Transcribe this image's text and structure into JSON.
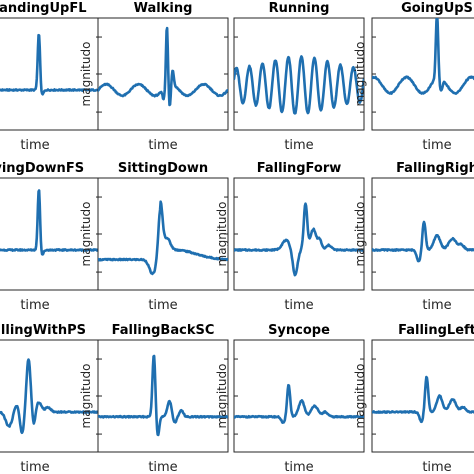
{
  "figure": {
    "line_color": "#1f6fb0",
    "axis_color": "#262626"
  },
  "chart_data": [
    {
      "type": "line",
      "title": "StandingUpFL",
      "xlabel": "time",
      "ylabel": "",
      "xlim": [
        0,
        100
      ],
      "ylim": [
        -2.5,
        4.5
      ],
      "series": [
        {
          "shape": "spike",
          "values": []
        }
      ],
      "features": {
        "baseline": 0,
        "spike_at": 53,
        "spike_height": 3.6,
        "after_dip": -0.3,
        "noise": 0.05
      }
    },
    {
      "type": "line",
      "title": "Walking",
      "xlabel": "time",
      "ylabel": "magnitudo",
      "xlim": [
        0,
        100
      ],
      "ylim": [
        -2.5,
        4.5
      ],
      "series": [
        {
          "shape": "walk"
        }
      ],
      "features": {
        "baseline": 0,
        "spike_at": 53,
        "spike_height": 3.8,
        "wave_amp": 0.35,
        "wave_cycles": 4
      }
    },
    {
      "type": "line",
      "title": "Running",
      "xlabel": "time",
      "ylabel": "",
      "xlim": [
        0,
        100
      ],
      "ylim": [
        -2.5,
        4.5
      ],
      "series": [
        {
          "shape": "run"
        }
      ],
      "features": {
        "baseline": 0.3,
        "wave_amp": 1.8,
        "wave_cycles": 10,
        "envelope_peak": 50
      }
    },
    {
      "type": "line",
      "title": "GoingUpS",
      "xlabel": "time",
      "ylabel": "magnitudo",
      "xlim": [
        0,
        100
      ],
      "ylim": [
        -2.5,
        4.5
      ],
      "series": [
        {
          "shape": "walk_spike"
        }
      ],
      "features": {
        "baseline": 0.3,
        "spike_at": 50,
        "spike_height": 4.0,
        "wave_amp": 0.5,
        "wave_cycles": 4
      }
    },
    {
      "type": "line",
      "title": "LyingDownFS",
      "xlabel": "time",
      "ylabel": "",
      "xlim": [
        0,
        100
      ],
      "ylim": [
        -2.5,
        4.5
      ],
      "series": [
        {
          "shape": "spike"
        }
      ],
      "features": {
        "baseline": 0,
        "spike_at": 53,
        "spike_height": 3.9,
        "after_dip": -0.2,
        "noise": 0.05
      }
    },
    {
      "type": "line",
      "title": "SittingDown",
      "xlabel": "time",
      "ylabel": "magnitudo",
      "xlim": [
        0,
        100
      ],
      "ylim": [
        -2.5,
        4.5
      ],
      "series": [
        {
          "shape": "sit"
        }
      ],
      "features": {
        "baseline": -0.6,
        "spike_at": 48,
        "spike_height": 3.1,
        "noise": 0.05
      }
    },
    {
      "type": "line",
      "title": "FallingForw",
      "xlabel": "time",
      "ylabel": "magnitudo",
      "xlim": [
        0,
        100
      ],
      "ylim": [
        -2.5,
        4.5
      ],
      "series": [
        {
          "shape": "fall"
        }
      ],
      "features": {
        "baseline": 0,
        "spike_at": 55,
        "spike_height": 2.9,
        "pre_bump_at": 40,
        "dip_at": 47
      }
    },
    {
      "type": "line",
      "title": "FallingRigh",
      "xlabel": "time",
      "ylabel": "magnitudo",
      "xlim": [
        0,
        100
      ],
      "ylim": [
        -2.5,
        4.5
      ],
      "series": [
        {
          "shape": "fall_small"
        }
      ],
      "features": {
        "baseline": 0,
        "spike_at": 40,
        "spike_height": 1.8,
        "bumps_at": [
          50,
          62
        ]
      }
    },
    {
      "type": "line",
      "title": "FallingWithPS",
      "xlabel": "time",
      "ylabel": "",
      "xlim": [
        0,
        100
      ],
      "ylim": [
        -2.5,
        4.5
      ],
      "series": [
        {
          "shape": "fall_ps"
        }
      ],
      "features": {
        "baseline": 0,
        "spike_at": 45,
        "spike_height": 3.3,
        "dip_at": 30
      }
    },
    {
      "type": "line",
      "title": "FallingBackSC",
      "xlabel": "time",
      "ylabel": "magnitudo",
      "xlim": [
        0,
        100
      ],
      "ylim": [
        -2.5,
        4.5
      ],
      "series": [
        {
          "shape": "fall_back"
        }
      ],
      "features": {
        "baseline": -0.3,
        "spike_at": 43,
        "spike_height": 3.9,
        "bump_at": 55
      }
    },
    {
      "type": "line",
      "title": "Syncope",
      "xlabel": "time",
      "ylabel": "magnitudo",
      "xlim": [
        0,
        100
      ],
      "ylim": [
        -2.5,
        4.5
      ],
      "series": [
        {
          "shape": "syncope"
        }
      ],
      "features": {
        "baseline": -0.3,
        "spike_at": 42,
        "spike_height": 2.0,
        "bumps_at": [
          52,
          62
        ]
      }
    },
    {
      "type": "line",
      "title": "FallingLeft",
      "xlabel": "time",
      "ylabel": "magnitudo",
      "xlim": [
        0,
        100
      ],
      "ylim": [
        -2.5,
        4.5
      ],
      "series": [
        {
          "shape": "fall_left"
        }
      ],
      "features": {
        "baseline": 0,
        "spike_at": 42,
        "spike_height": 2.2,
        "bumps_at": [
          52,
          62
        ]
      }
    }
  ]
}
